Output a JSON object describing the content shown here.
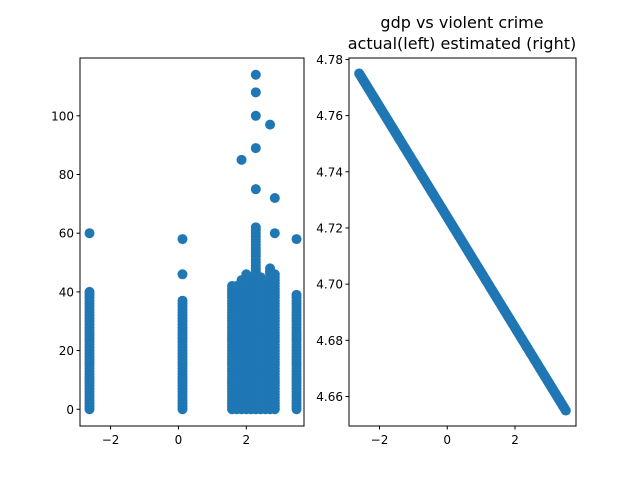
{
  "colors": {
    "marker": "#1f77b4",
    "axis": "#000000",
    "background": "#ffffff"
  },
  "chart_data": [
    {
      "type": "scatter",
      "title": "",
      "xlabel": "",
      "ylabel": "",
      "xlim": [
        -2.9,
        3.7
      ],
      "ylim": [
        -5.7,
        119.7
      ],
      "xticks": [
        -2,
        0,
        2
      ],
      "xtick_labels": [
        "−2",
        "0",
        "2"
      ],
      "yticks": [
        0,
        20,
        40,
        60,
        80,
        100
      ],
      "ytick_labels": [
        "0",
        "20",
        "40",
        "60",
        "80",
        "100"
      ],
      "grid": false,
      "columns": [
        {
          "x": -2.62,
          "max": 40,
          "extras": [
            60
          ]
        },
        {
          "x": 0.12,
          "max": 37,
          "extras": [
            46,
            58
          ]
        },
        {
          "x": 1.58,
          "max": 42,
          "extras": []
        },
        {
          "x": 1.72,
          "max": 42,
          "extras": []
        },
        {
          "x": 1.86,
          "max": 44,
          "extras": [
            85
          ]
        },
        {
          "x": 2.0,
          "max": 46,
          "extras": []
        },
        {
          "x": 2.14,
          "max": 42,
          "extras": []
        },
        {
          "x": 2.28,
          "max": 62,
          "extras": [
            75,
            89,
            100,
            108,
            114
          ]
        },
        {
          "x": 2.42,
          "max": 45,
          "extras": []
        },
        {
          "x": 2.56,
          "max": 42,
          "extras": []
        },
        {
          "x": 2.7,
          "max": 48,
          "extras": [
            97
          ]
        },
        {
          "x": 2.84,
          "max": 46,
          "extras": [
            60,
            72
          ]
        },
        {
          "x": 3.48,
          "max": 39,
          "extras": [
            58
          ]
        }
      ]
    },
    {
      "type": "scatter",
      "title": "gdp vs violent crime\nactual(left) estimated (right)",
      "title_lines": [
        "gdp vs violent crime",
        "actual(left) estimated (right)"
      ],
      "xlabel": "",
      "ylabel": "",
      "xlim": [
        -2.9,
        3.8
      ],
      "ylim": [
        4.6495,
        4.7805
      ],
      "xticks": [
        -2,
        0,
        2
      ],
      "xtick_labels": [
        "−2",
        "0",
        "2"
      ],
      "yticks": [
        4.66,
        4.68,
        4.7,
        4.72,
        4.74,
        4.76,
        4.78
      ],
      "ytick_labels": [
        "4.66",
        "4.68",
        "4.70",
        "4.72",
        "4.74",
        "4.76",
        "4.78"
      ],
      "grid": false,
      "line": {
        "x0": -2.6,
        "y0": 4.775,
        "x1": 3.5,
        "y1": 4.655
      }
    }
  ]
}
